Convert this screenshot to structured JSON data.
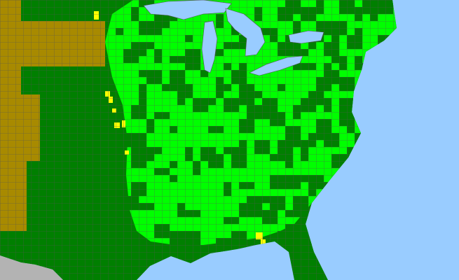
{
  "map": {
    "colors": {
      "ocean": "#99ccff",
      "land_dark_green": "#007f00",
      "land_bright_green": "#00ff00",
      "land_olive": "#a88a00",
      "highlight_yellow": "#ffff00",
      "foreign_gray": "#b3b3b3",
      "county_border": "#555555"
    }
  }
}
